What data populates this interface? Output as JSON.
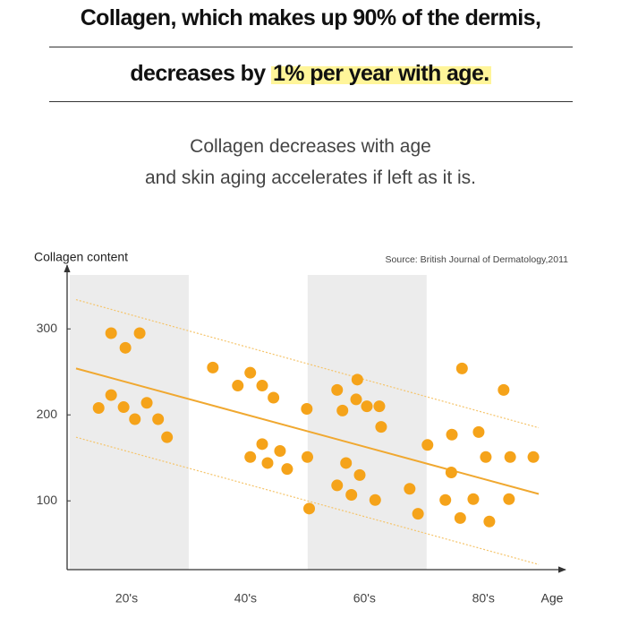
{
  "header": {
    "line1": "Collagen, which makes up 90% of the dermis,",
    "line2": [
      "decreases by ",
      "1% per year with age."
    ],
    "subtitle": [
      "Collagen decreases with age",
      "and skin aging accelerates if left as it is."
    ]
  },
  "chart_data": {
    "type": "scatter",
    "y_label": "Collagen content",
    "x_label": "Age",
    "source": "Source: British Journal of Dermatology,2011",
    "xlim": [
      10,
      92
    ],
    "ylim": [
      20,
      370
    ],
    "xticks": [
      {
        "value": 20,
        "label": "20's"
      },
      {
        "value": 40,
        "label": "40's"
      },
      {
        "value": 60,
        "label": "60's"
      },
      {
        "value": 80,
        "label": "80's"
      }
    ],
    "yticks": [
      100,
      200,
      300
    ],
    "bands": [
      [
        10,
        30
      ],
      [
        50,
        70
      ]
    ],
    "color": "#f5a31a",
    "x": [
      17.4,
      22.2,
      19.8,
      17.4,
      15.3,
      19.5,
      23.4,
      21.4,
      25.3,
      26.8,
      34.5,
      40.8,
      38.7,
      42.8,
      44.7,
      42.8,
      40.8,
      45.8,
      43.7,
      47,
      50.3,
      50.4,
      50.7,
      55.4,
      58.8,
      58.6,
      56.3,
      60.4,
      62.5,
      62.8,
      56.9,
      59.2,
      55.4,
      57.8,
      61.8,
      67.6,
      69,
      70.6,
      76.4,
      74.7,
      74.6,
      73.6,
      76.1,
      78.3,
      79.2,
      80.4,
      83.4,
      84.5,
      81,
      84.3,
      88.4
    ],
    "values": [
      295,
      295,
      278,
      223,
      208,
      209,
      214,
      195,
      195,
      174,
      255,
      249,
      234,
      234,
      220,
      166,
      151,
      158,
      144,
      137,
      207,
      151,
      91,
      229,
      241,
      218,
      205,
      210,
      210,
      186,
      144,
      130,
      118,
      107,
      101,
      114,
      85,
      165,
      254,
      177,
      133,
      101,
      80,
      102,
      180,
      151,
      229,
      151,
      76,
      102,
      151
    ],
    "lines": [
      {
        "style": "solid",
        "color": "#f0a830",
        "x": [
          11.5,
          89.3
        ],
        "values": [
          254,
          108
        ]
      },
      {
        "style": "dotted",
        "color": "#f5c46a",
        "x": [
          11.5,
          89.3
        ],
        "values": [
          334,
          185
        ]
      },
      {
        "style": "dotted",
        "color": "#f5c46a",
        "x": [
          11.5,
          89.3
        ],
        "values": [
          174,
          26
        ]
      }
    ]
  }
}
